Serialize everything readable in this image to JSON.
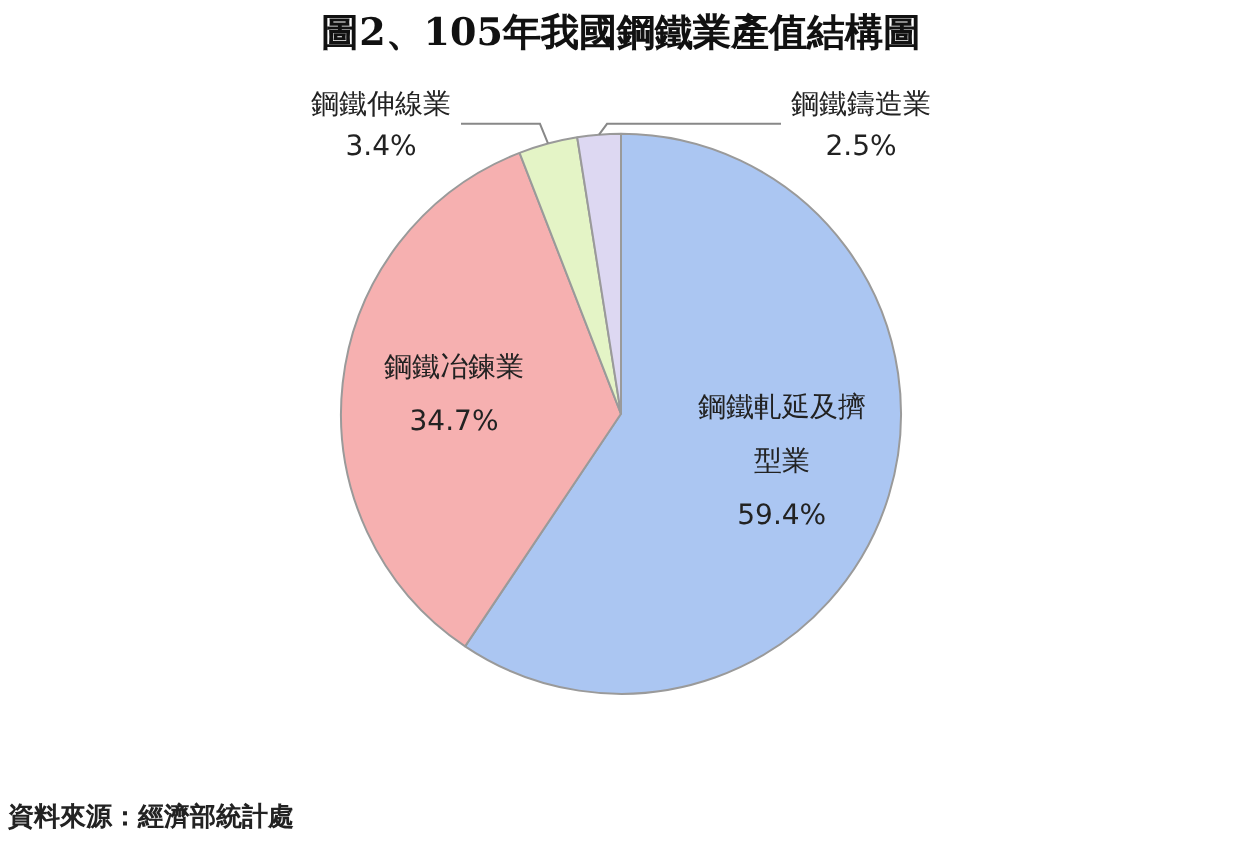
{
  "chart_data": {
    "type": "pie",
    "title": "圖2、105年我國鋼鐵業產值結構圖",
    "categories": [
      "鋼鐵軋延及擠型業",
      "鋼鐵冶鍊業",
      "鋼鐵伸線業",
      "鋼鐵鑄造業"
    ],
    "values": [
      59.4,
      34.7,
      3.4,
      2.5
    ],
    "value_labels": [
      "59.4%",
      "34.7%",
      "3.4%",
      "2.5%"
    ],
    "colors": [
      "#abc6f2",
      "#f6b0b0",
      "#e4f4c6",
      "#ddd8f2"
    ],
    "annotations": [
      "資料來源：經濟部統計處"
    ]
  }
}
